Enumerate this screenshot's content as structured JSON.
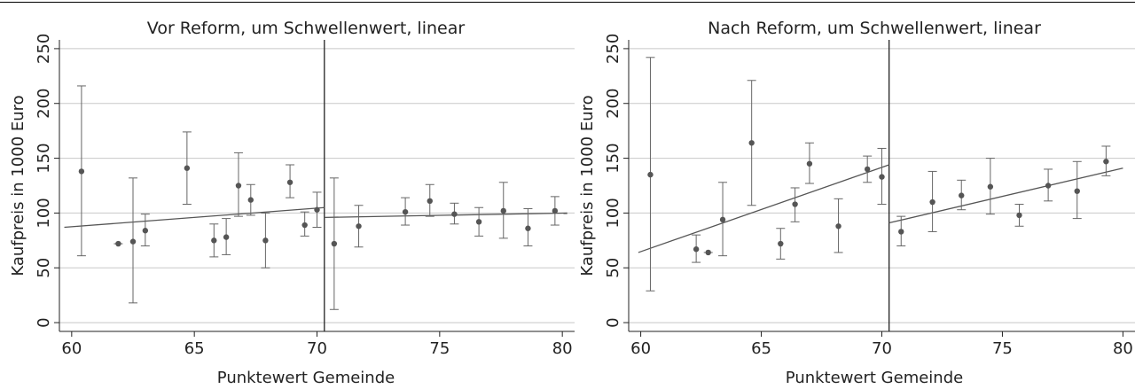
{
  "chart_data": [
    {
      "type": "scatter",
      "title": "Vor Reform, um Schwellenwert, linear",
      "xlabel": "Punktewert Gemeinde",
      "ylabel": "Kaufpreis in 1000 Euro",
      "xlim": [
        59.5,
        80.5
      ],
      "ylim": [
        -8,
        258
      ],
      "xticks": [
        60,
        65,
        70,
        75,
        80
      ],
      "yticks": [
        0,
        50,
        100,
        150,
        200,
        250
      ],
      "grid": true,
      "threshold": 70.3,
      "points": [
        {
          "x": 60.4,
          "y": 138,
          "lo": 61,
          "hi": 216
        },
        {
          "x": 61.9,
          "y": 72,
          "lo": 72,
          "hi": 73
        },
        {
          "x": 62.5,
          "y": 74,
          "lo": 18,
          "hi": 132
        },
        {
          "x": 63.0,
          "y": 84,
          "lo": 70,
          "hi": 99
        },
        {
          "x": 64.7,
          "y": 141,
          "lo": 108,
          "hi": 174
        },
        {
          "x": 65.8,
          "y": 75,
          "lo": 60,
          "hi": 90
        },
        {
          "x": 66.3,
          "y": 78,
          "lo": 62,
          "hi": 95
        },
        {
          "x": 66.8,
          "y": 125,
          "lo": 97,
          "hi": 155
        },
        {
          "x": 67.3,
          "y": 112,
          "lo": 98,
          "hi": 126
        },
        {
          "x": 67.9,
          "y": 75,
          "lo": 50,
          "hi": 100
        },
        {
          "x": 68.9,
          "y": 128,
          "lo": 114,
          "hi": 144
        },
        {
          "x": 69.5,
          "y": 89,
          "lo": 79,
          "hi": 101
        },
        {
          "x": 70.0,
          "y": 103,
          "lo": 87,
          "hi": 119
        },
        {
          "x": 70.7,
          "y": 72,
          "lo": 12,
          "hi": 132
        },
        {
          "x": 71.7,
          "y": 88,
          "lo": 69,
          "hi": 107
        },
        {
          "x": 73.6,
          "y": 101,
          "lo": 89,
          "hi": 114
        },
        {
          "x": 74.6,
          "y": 111,
          "lo": 97,
          "hi": 126
        },
        {
          "x": 75.6,
          "y": 99,
          "lo": 90,
          "hi": 109
        },
        {
          "x": 76.6,
          "y": 92,
          "lo": 79,
          "hi": 105
        },
        {
          "x": 77.6,
          "y": 102,
          "lo": 77,
          "hi": 128
        },
        {
          "x": 78.6,
          "y": 86,
          "lo": 70,
          "hi": 104
        },
        {
          "x": 79.7,
          "y": 102,
          "lo": 89,
          "hi": 115
        }
      ],
      "fit_lines": [
        {
          "x": [
            59.7,
            70.3
          ],
          "y": [
            87,
            105
          ]
        },
        {
          "x": [
            70.3,
            80.2
          ],
          "y": [
            96,
            100
          ]
        }
      ]
    },
    {
      "type": "scatter",
      "title": "Nach Reform, um Schwellenwert, linear",
      "xlabel": "Punktewert Gemeinde",
      "ylabel": "Kaufpreis in 1000 Euro",
      "xlim": [
        59.5,
        80.5
      ],
      "ylim": [
        -8,
        258
      ],
      "xticks": [
        60,
        65,
        70,
        75,
        80
      ],
      "yticks": [
        0,
        50,
        100,
        150,
        200,
        250
      ],
      "grid": true,
      "threshold": 70.3,
      "points": [
        {
          "x": 60.4,
          "y": 135,
          "lo": 29,
          "hi": 242
        },
        {
          "x": 62.3,
          "y": 67,
          "lo": 55,
          "hi": 80
        },
        {
          "x": 62.8,
          "y": 64,
          "lo": 64,
          "hi": 65
        },
        {
          "x": 63.4,
          "y": 94,
          "lo": 61,
          "hi": 128
        },
        {
          "x": 64.6,
          "y": 164,
          "lo": 107,
          "hi": 221
        },
        {
          "x": 65.8,
          "y": 72,
          "lo": 58,
          "hi": 86
        },
        {
          "x": 66.4,
          "y": 108,
          "lo": 92,
          "hi": 123
        },
        {
          "x": 67.0,
          "y": 145,
          "lo": 127,
          "hi": 164
        },
        {
          "x": 68.2,
          "y": 88,
          "lo": 64,
          "hi": 113
        },
        {
          "x": 69.4,
          "y": 140,
          "lo": 128,
          "hi": 152
        },
        {
          "x": 70.0,
          "y": 133,
          "lo": 108,
          "hi": 159
        },
        {
          "x": 70.8,
          "y": 83,
          "lo": 70,
          "hi": 97
        },
        {
          "x": 72.1,
          "y": 110,
          "lo": 83,
          "hi": 138
        },
        {
          "x": 73.3,
          "y": 116,
          "lo": 103,
          "hi": 130
        },
        {
          "x": 74.5,
          "y": 124,
          "lo": 99,
          "hi": 150
        },
        {
          "x": 75.7,
          "y": 98,
          "lo": 88,
          "hi": 108
        },
        {
          "x": 76.9,
          "y": 125,
          "lo": 111,
          "hi": 140
        },
        {
          "x": 78.1,
          "y": 120,
          "lo": 95,
          "hi": 147
        },
        {
          "x": 79.3,
          "y": 147,
          "lo": 134,
          "hi": 161
        }
      ],
      "fit_lines": [
        {
          "x": [
            59.9,
            70.3
          ],
          "y": [
            64,
            144
          ]
        },
        {
          "x": [
            70.3,
            80.0
          ],
          "y": [
            91,
            141
          ]
        }
      ]
    }
  ]
}
